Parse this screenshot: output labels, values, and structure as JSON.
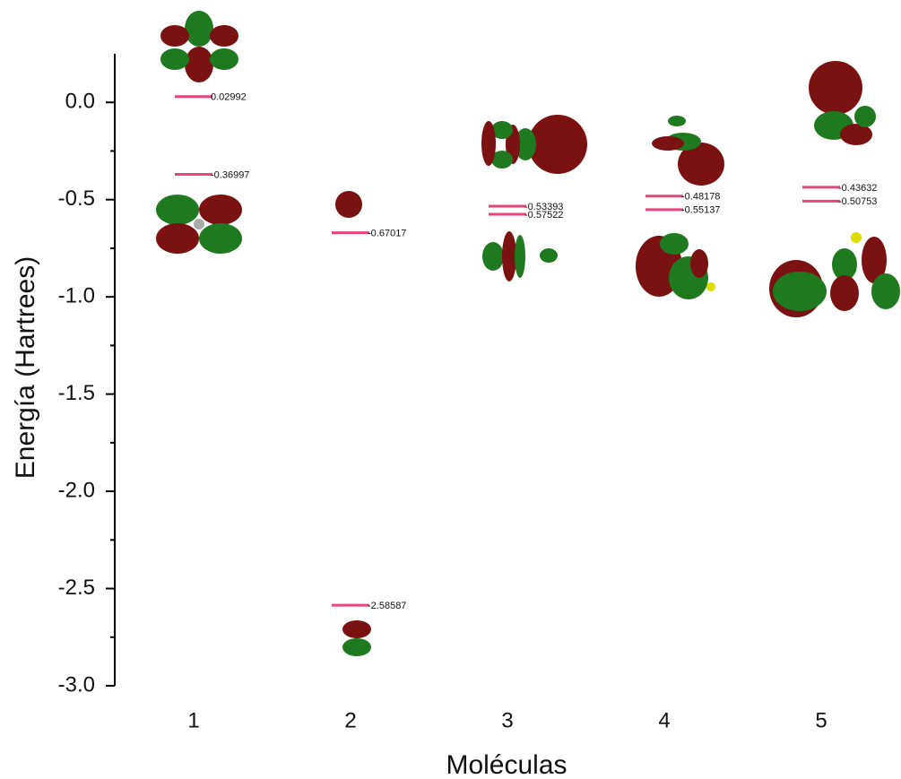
{
  "chart_data": {
    "type": "levels",
    "y_label": "Energía (Hartrees)",
    "x_label": "Moléculas",
    "categories": [
      "1",
      "2",
      "3",
      "4",
      "5"
    ],
    "series": [
      {
        "color": "#e8457a",
        "values": [
          0.02992,
          -0.67017,
          -0.53393,
          -0.48178,
          -0.43632
        ]
      },
      {
        "color": "#e8457a",
        "values": [
          -0.36997,
          -2.58587,
          -0.57522,
          -0.55137,
          -0.50753
        ]
      }
    ],
    "ylim": [
      -3.0,
      0.25
    ],
    "yticks": [
      {
        "value": -3.0,
        "label": "-3.0"
      },
      -2.5,
      {
        "value": -2.0,
        "label": "-2.0"
      },
      -1.5,
      {
        "value": -1.0,
        "label": "-1.0"
      },
      -0.5,
      {
        "value": 0,
        "label": "0.0"
      }
    ],
    "minor_ticks": true
  }
}
